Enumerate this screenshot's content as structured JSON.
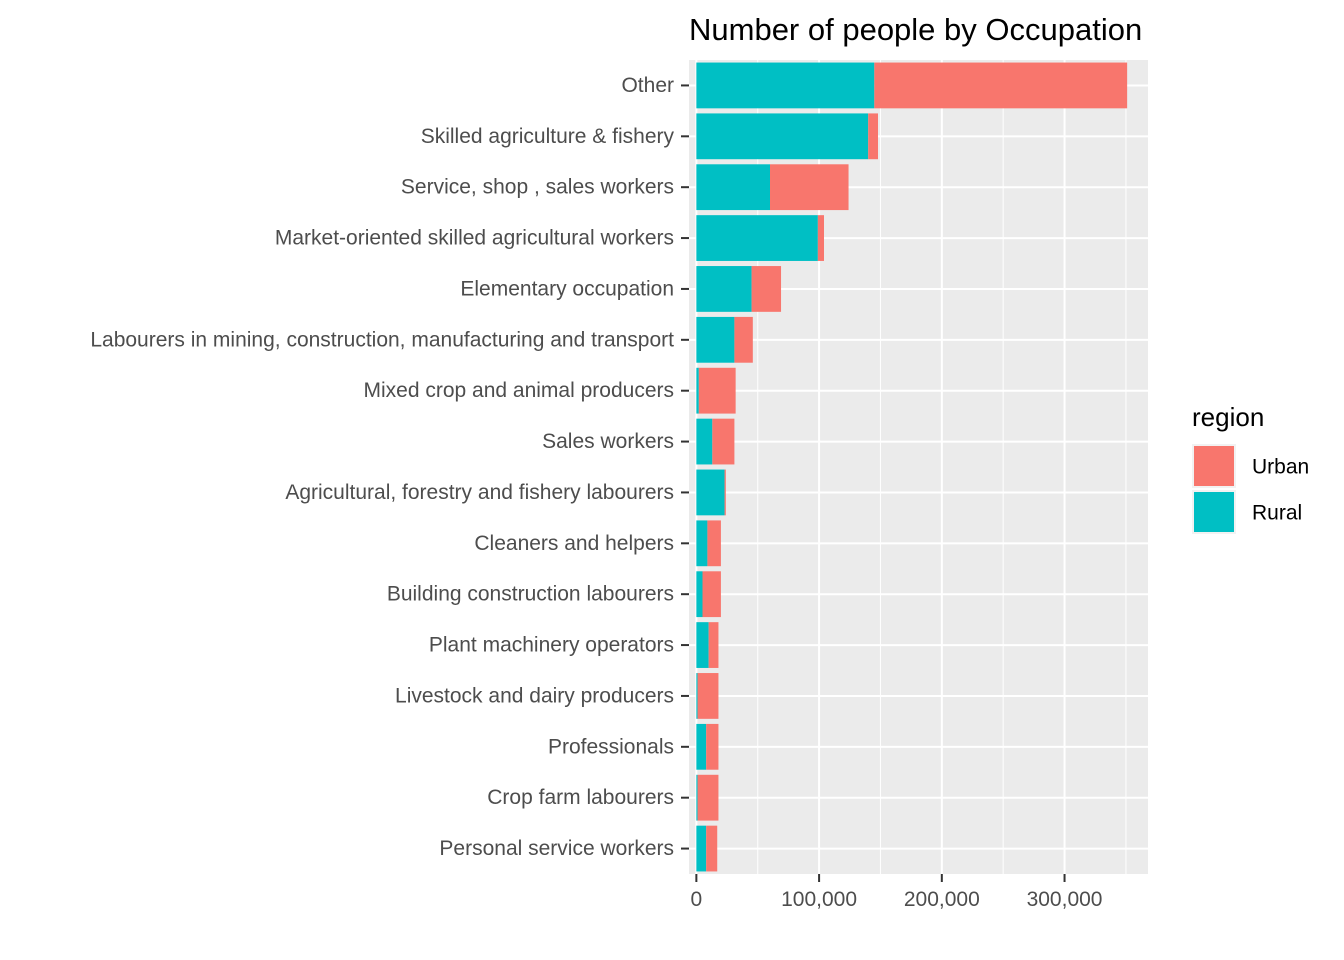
{
  "chart_data": {
    "type": "bar",
    "orientation": "horizontal",
    "stacked": true,
    "title": "Number of people by Occupation",
    "xlabel": "",
    "ylabel": "",
    "xlim": [
      -6000,
      368000
    ],
    "x_ticks": [
      0,
      100000,
      200000,
      300000
    ],
    "x_tick_labels": [
      "0",
      "100,000",
      "200,000",
      "300,000"
    ],
    "grid": true,
    "categories": [
      "Other",
      "Skilled agriculture & fishery",
      "Service, shop , sales workers",
      "Market-oriented skilled agricultural workers",
      "Elementary occupation",
      "Labourers in mining, construction, manufacturing and transport",
      "Mixed crop and animal producers",
      "Sales workers",
      "Agricultural, forestry and fishery labourers",
      "Cleaners and helpers",
      "Building construction labourers",
      "Plant machinery operators",
      "Livestock and dairy producers",
      "Professionals",
      "Crop farm labourers",
      "Personal service workers"
    ],
    "series": [
      {
        "name": "Rural",
        "color": "#00BFC4",
        "values": [
          145000,
          140000,
          60000,
          99000,
          45000,
          31000,
          2000,
          13000,
          23000,
          9000,
          5000,
          10000,
          1000,
          8000,
          1000,
          8000
        ]
      },
      {
        "name": "Urban",
        "color": "#F8766D",
        "values": [
          206000,
          8000,
          64000,
          5000,
          24000,
          15000,
          30000,
          18000,
          1000,
          11000,
          15000,
          8000,
          17000,
          10000,
          17000,
          9000
        ]
      }
    ],
    "legend": {
      "title": "region",
      "position": "right",
      "entries": [
        {
          "label": "Urban",
          "color": "#F8766D"
        },
        {
          "label": "Rural",
          "color": "#00BFC4"
        }
      ]
    },
    "panel_background": "#EBEBEB",
    "grid_color": "#FFFFFF"
  }
}
